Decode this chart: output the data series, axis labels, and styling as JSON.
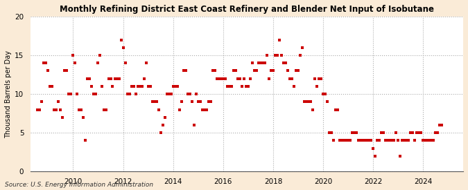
{
  "title": "Monthly Refining District East Coast Refinery and Blender Net Input of Isobutane",
  "ylabel": "Thousand Barrels per Day",
  "source": "Source: U.S. Energy Information Administration",
  "background_color": "#faebd7",
  "plot_bg_color": "#ffffff",
  "dot_color": "#cc0000",
  "ylim": [
    0,
    20
  ],
  "yticks": [
    0,
    5,
    10,
    15,
    20
  ],
  "xlim_start": 2008.3,
  "xlim_end": 2025.6,
  "xticks": [
    2010,
    2012,
    2014,
    2016,
    2018,
    2020,
    2022,
    2024
  ],
  "data": [
    [
      2008.583,
      8
    ],
    [
      2008.667,
      8
    ],
    [
      2008.75,
      9
    ],
    [
      2008.833,
      14
    ],
    [
      2008.917,
      14
    ],
    [
      2009.0,
      13
    ],
    [
      2009.083,
      11
    ],
    [
      2009.167,
      11
    ],
    [
      2009.25,
      8
    ],
    [
      2009.333,
      8
    ],
    [
      2009.417,
      9
    ],
    [
      2009.5,
      8
    ],
    [
      2009.583,
      7
    ],
    [
      2009.667,
      13
    ],
    [
      2009.75,
      13
    ],
    [
      2009.833,
      10
    ],
    [
      2009.917,
      10
    ],
    [
      2010.0,
      15
    ],
    [
      2010.083,
      14
    ],
    [
      2010.167,
      10
    ],
    [
      2010.25,
      8
    ],
    [
      2010.333,
      8
    ],
    [
      2010.417,
      7
    ],
    [
      2010.5,
      4
    ],
    [
      2010.583,
      12
    ],
    [
      2010.667,
      12
    ],
    [
      2010.75,
      11
    ],
    [
      2010.833,
      10
    ],
    [
      2010.917,
      10
    ],
    [
      2011.0,
      14
    ],
    [
      2011.083,
      15
    ],
    [
      2011.167,
      11
    ],
    [
      2011.25,
      8
    ],
    [
      2011.333,
      8
    ],
    [
      2011.417,
      12
    ],
    [
      2011.5,
      12
    ],
    [
      2011.583,
      11
    ],
    [
      2011.667,
      12
    ],
    [
      2011.75,
      12
    ],
    [
      2011.833,
      12
    ],
    [
      2011.917,
      17
    ],
    [
      2012.0,
      16
    ],
    [
      2012.083,
      14
    ],
    [
      2012.167,
      10
    ],
    [
      2012.25,
      10
    ],
    [
      2012.333,
      11
    ],
    [
      2012.417,
      11
    ],
    [
      2012.5,
      10
    ],
    [
      2012.583,
      11
    ],
    [
      2012.667,
      11
    ],
    [
      2012.75,
      11
    ],
    [
      2012.833,
      12
    ],
    [
      2012.917,
      14
    ],
    [
      2013.0,
      11
    ],
    [
      2013.083,
      11
    ],
    [
      2013.167,
      9
    ],
    [
      2013.25,
      9
    ],
    [
      2013.333,
      9
    ],
    [
      2013.417,
      8
    ],
    [
      2013.5,
      5
    ],
    [
      2013.583,
      6
    ],
    [
      2013.667,
      7
    ],
    [
      2013.75,
      10
    ],
    [
      2013.833,
      10
    ],
    [
      2013.917,
      10
    ],
    [
      2014.0,
      11
    ],
    [
      2014.083,
      11
    ],
    [
      2014.167,
      11
    ],
    [
      2014.25,
      8
    ],
    [
      2014.333,
      9
    ],
    [
      2014.417,
      13
    ],
    [
      2014.5,
      13
    ],
    [
      2014.583,
      10
    ],
    [
      2014.667,
      10
    ],
    [
      2014.75,
      9
    ],
    [
      2014.833,
      6
    ],
    [
      2014.917,
      10
    ],
    [
      2015.0,
      9
    ],
    [
      2015.083,
      9
    ],
    [
      2015.167,
      8
    ],
    [
      2015.25,
      8
    ],
    [
      2015.333,
      8
    ],
    [
      2015.417,
      9
    ],
    [
      2015.5,
      9
    ],
    [
      2015.583,
      13
    ],
    [
      2015.667,
      13
    ],
    [
      2015.75,
      12
    ],
    [
      2015.833,
      12
    ],
    [
      2015.917,
      12
    ],
    [
      2016.0,
      12
    ],
    [
      2016.083,
      12
    ],
    [
      2016.167,
      11
    ],
    [
      2016.25,
      11
    ],
    [
      2016.333,
      11
    ],
    [
      2016.417,
      13
    ],
    [
      2016.5,
      13
    ],
    [
      2016.583,
      12
    ],
    [
      2016.667,
      12
    ],
    [
      2016.75,
      11
    ],
    [
      2016.833,
      12
    ],
    [
      2016.917,
      11
    ],
    [
      2017.0,
      11
    ],
    [
      2017.083,
      12
    ],
    [
      2017.167,
      14
    ],
    [
      2017.25,
      13
    ],
    [
      2017.333,
      13
    ],
    [
      2017.417,
      14
    ],
    [
      2017.5,
      14
    ],
    [
      2017.583,
      14
    ],
    [
      2017.667,
      14
    ],
    [
      2017.75,
      15
    ],
    [
      2017.833,
      12
    ],
    [
      2017.917,
      13
    ],
    [
      2018.0,
      13
    ],
    [
      2018.083,
      15
    ],
    [
      2018.167,
      15
    ],
    [
      2018.25,
      17
    ],
    [
      2018.333,
      15
    ],
    [
      2018.417,
      14
    ],
    [
      2018.5,
      14
    ],
    [
      2018.583,
      13
    ],
    [
      2018.667,
      12
    ],
    [
      2018.75,
      12
    ],
    [
      2018.833,
      11
    ],
    [
      2018.917,
      13
    ],
    [
      2019.0,
      13
    ],
    [
      2019.083,
      15
    ],
    [
      2019.167,
      16
    ],
    [
      2019.25,
      9
    ],
    [
      2019.333,
      9
    ],
    [
      2019.417,
      9
    ],
    [
      2019.5,
      9
    ],
    [
      2019.583,
      8
    ],
    [
      2019.667,
      12
    ],
    [
      2019.75,
      11
    ],
    [
      2019.833,
      12
    ],
    [
      2019.917,
      12
    ],
    [
      2020.0,
      10
    ],
    [
      2020.083,
      10
    ],
    [
      2020.167,
      9
    ],
    [
      2020.25,
      5
    ],
    [
      2020.333,
      5
    ],
    [
      2020.417,
      4
    ],
    [
      2020.5,
      8
    ],
    [
      2020.583,
      8
    ],
    [
      2020.667,
      4
    ],
    [
      2020.75,
      4
    ],
    [
      2020.833,
      4
    ],
    [
      2020.917,
      4
    ],
    [
      2021.0,
      4
    ],
    [
      2021.083,
      4
    ],
    [
      2021.167,
      5
    ],
    [
      2021.25,
      5
    ],
    [
      2021.333,
      5
    ],
    [
      2021.417,
      4
    ],
    [
      2021.5,
      4
    ],
    [
      2021.583,
      4
    ],
    [
      2021.667,
      4
    ],
    [
      2021.75,
      4
    ],
    [
      2021.833,
      4
    ],
    [
      2021.917,
      4
    ],
    [
      2022.0,
      3
    ],
    [
      2022.083,
      2
    ],
    [
      2022.167,
      4
    ],
    [
      2022.25,
      4
    ],
    [
      2022.333,
      5
    ],
    [
      2022.417,
      5
    ],
    [
      2022.5,
      4
    ],
    [
      2022.583,
      4
    ],
    [
      2022.667,
      4
    ],
    [
      2022.75,
      4
    ],
    [
      2022.833,
      4
    ],
    [
      2022.917,
      5
    ],
    [
      2023.0,
      4
    ],
    [
      2023.083,
      2
    ],
    [
      2023.167,
      4
    ],
    [
      2023.25,
      4
    ],
    [
      2023.333,
      4
    ],
    [
      2023.417,
      4
    ],
    [
      2023.5,
      5
    ],
    [
      2023.583,
      5
    ],
    [
      2023.667,
      4
    ],
    [
      2023.75,
      5
    ],
    [
      2023.833,
      5
    ],
    [
      2023.917,
      5
    ],
    [
      2024.0,
      4
    ],
    [
      2024.083,
      4
    ],
    [
      2024.167,
      4
    ],
    [
      2024.25,
      4
    ],
    [
      2024.333,
      4
    ],
    [
      2024.417,
      4
    ],
    [
      2024.5,
      5
    ],
    [
      2024.583,
      5
    ],
    [
      2024.667,
      6
    ],
    [
      2024.75,
      6
    ]
  ]
}
